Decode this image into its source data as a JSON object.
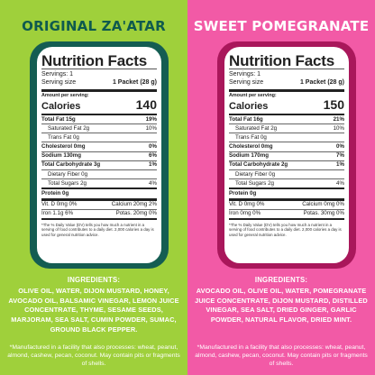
{
  "colors": {
    "left_bg": "#9fd03b",
    "left_panel": "#145d52",
    "right_bg": "#f25aa6",
    "right_panel": "#a9175b"
  },
  "products": [
    {
      "title": "ORIGINAL ZA'ATAR",
      "label": {
        "heading": "Nutrition Facts",
        "servings": "Servings: 1",
        "serving_size_label": "Serving size",
        "serving_size_value": "1 Packet (28 g)",
        "amount_per_serving": "Amount per serving:",
        "calories_label": "Calories",
        "calories_value": "140",
        "total_fat": "Total Fat 15g",
        "total_fat_dv": "19%",
        "sat_fat": "Saturated Fat 2g",
        "sat_fat_dv": "10%",
        "trans_fat": "Trans Fat 0g",
        "cholesterol": "Cholesterol 0mg",
        "cholesterol_dv": "0%",
        "sodium": "Sodium 130mg",
        "sodium_dv": "6%",
        "carb": "Total Carbohydrate 3g",
        "carb_dv": "1%",
        "fiber": "Dietary Fiber 0g",
        "sugars": "Total Sugars 2g",
        "sugars_dv": "4%",
        "protein": "Protein 0g",
        "vit_d": "Vit. D 0mg 0%",
        "calcium": "Calcium 20mg 2%",
        "iron": "Iron 1.1g 6%",
        "potas": "Potas. 20mg 0%",
        "footnote": "*The % Daily Value (DV) tells you how much a nutrient in a serving of food contributes to a daily diet. 2,000 calories a day is used for general nutrition advice."
      },
      "ingredients_heading": "INGREDIENTS:",
      "ingredients": "OLIVE OIL, WATER, DIJON MUSTARD, HONEY, AVOCADO OIL, BALSAMIC VINEGAR, LEMON JUICE CONCENTRATE, THYME, SESAME SEEDS, MARJORAM, SEA SALT, CUMIN POWDER, SUMAC, GROUND BLACK PEPPER.",
      "facility": "*Manufactured in a facility that also processes: wheat, peanut, almond, cashew, pecan, coconut. May contain pits or fragments of shells."
    },
    {
      "title": "SWEET POMEGRANATE",
      "label": {
        "heading": "Nutrition Facts",
        "servings": "Servings: 1",
        "serving_size_label": "Serving size",
        "serving_size_value": "1 Packet (28 g)",
        "amount_per_serving": "Amount per serving:",
        "calories_label": "Calories",
        "calories_value": "150",
        "total_fat": "Total Fat 16g",
        "total_fat_dv": "21%",
        "sat_fat": "Saturated Fat 2g",
        "sat_fat_dv": "10%",
        "trans_fat": "Trans Fat 0g",
        "cholesterol": "Cholesterol 0mg",
        "cholesterol_dv": "0%",
        "sodium": "Sodium 170mg",
        "sodium_dv": "7%",
        "carb": "Total Carbohydrate 2g",
        "carb_dv": "1%",
        "fiber": "Dietary Fiber 0g",
        "sugars": "Total Sugars 2g",
        "sugars_dv": "4%",
        "protein": "Protein 0g",
        "vit_d": "Vit. D 0mg 0%",
        "calcium": "Calcium 0mg 0%",
        "iron": "Iron 0mg 0%",
        "potas": "Potas. 30mg 0%",
        "footnote": "*The % Daily Value (DV) tells you how much a nutrient in a serving of food contributes to a daily diet. 2,000 calories a day is used for general nutrition advice."
      },
      "ingredients_heading": "INGREDIENTS:",
      "ingredients": "AVOCADO OIL, OLIVE OIL, WATER, POMEGRANATE JUICE CONCENTRATE, DIJON MUSTARD, DISTILLED VINEGAR, SEA SALT, DRIED GINGER, GARLIC POWDER, NATURAL FLAVOR, DRIED MINT.",
      "facility": "*Manufactured in a facility that also processes: wheat, peanut, almond, cashew, pecan, coconut. May contain pits or fragments of shells."
    }
  ]
}
